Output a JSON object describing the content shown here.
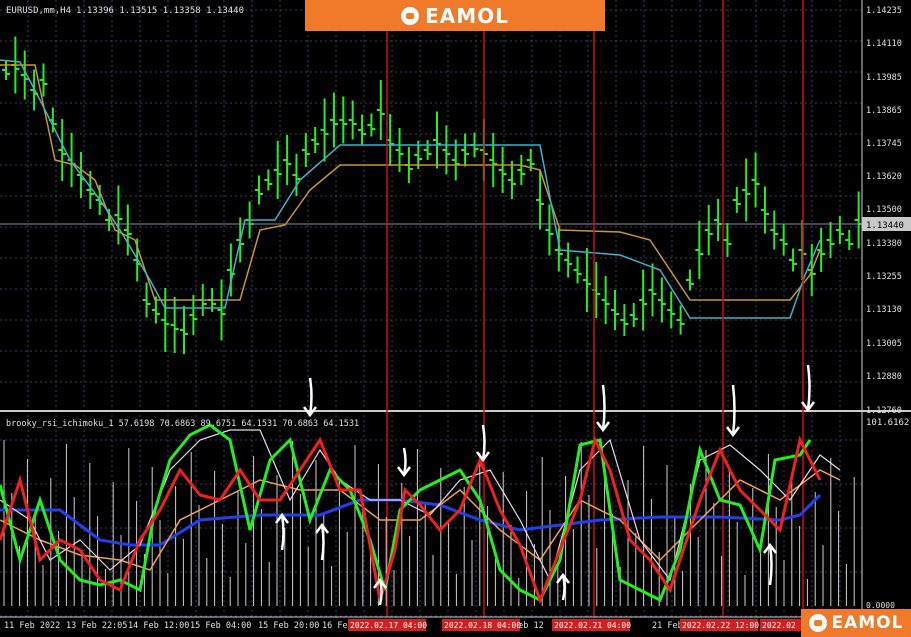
{
  "header": {
    "symbol_label": "EURUSD,mm,H4",
    "ohlc": "1.13396 1.13515 1.13358 1.13440",
    "brand": "EAMOL",
    "brand_icon": "robot-icon"
  },
  "price_axis": {
    "labels": [
      "1.14235",
      "1.14110",
      "1.13985",
      "1.13865",
      "1.13745",
      "1.13620",
      "1.13500",
      "1.13440",
      "1.13380",
      "1.13255",
      "1.13130",
      "1.13005",
      "1.12880",
      "1.12760"
    ],
    "current_price": "1.13440"
  },
  "indicator": {
    "label": "brooky_rsi_ichimoku_1 57.6198 70.6863 89.6751 64.1531 70.6863 64.1531",
    "axis_top": "101.6162",
    "axis_bottom": "0.0000"
  },
  "time_axis": {
    "labels": [
      "11 Feb 2022",
      "13 Feb 22:05",
      "14 Feb 12:00",
      "15 Feb 04:00",
      "15 Feb 20:00",
      "16 Feb",
      "Feb 12",
      "21 Feb 16"
    ],
    "red_tags": [
      "2022.02.17 04:00",
      "2022.02.18 04:00",
      "2022.02.21 04:00",
      "2022.02.22 12:00",
      "2022.02"
    ]
  },
  "colors": {
    "background": "#000000",
    "grid": "#3a3a5a",
    "bull_bar": "#22ee22",
    "tenkan": "#c8962a",
    "kijun": "#3ab4c8",
    "rsi_green": "#22ee22",
    "rsi_red": "#ee2020",
    "rsi_blue": "#2040ee",
    "rsi_white": "#e8d8e8",
    "rsi_orange": "#f0a050",
    "brand": "#f07a2a",
    "vline": "#cc1111"
  }
}
